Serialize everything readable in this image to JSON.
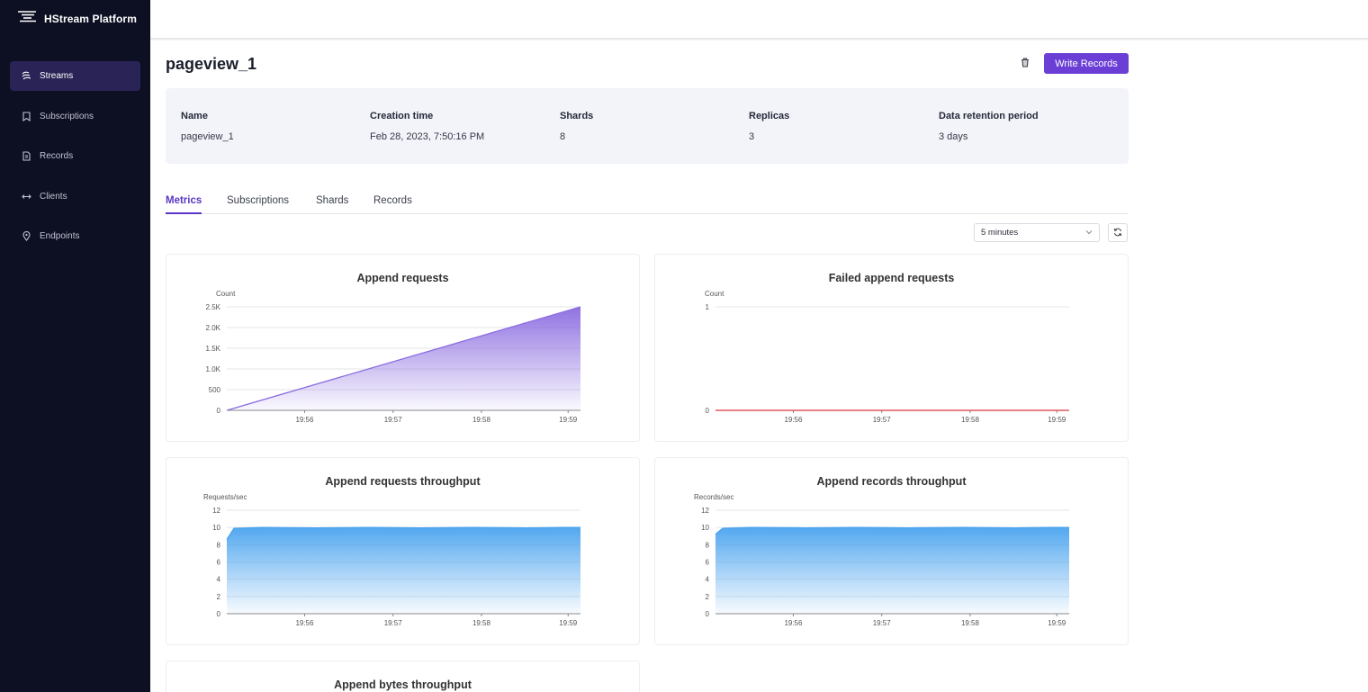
{
  "app": {
    "title": "HStream Platform"
  },
  "sidebar": {
    "items": [
      {
        "label": "Streams",
        "icon": "streams-icon",
        "active": true
      },
      {
        "label": "Subscriptions",
        "icon": "bookmark-icon",
        "active": false
      },
      {
        "label": "Records",
        "icon": "records-icon",
        "active": false
      },
      {
        "label": "Clients",
        "icon": "clients-icon",
        "active": false
      },
      {
        "label": "Endpoints",
        "icon": "location-pin-icon",
        "active": false
      }
    ]
  },
  "page": {
    "title": "pageview_1",
    "write_button": "Write Records"
  },
  "info": {
    "name_label": "Name",
    "name_value": "pageview_1",
    "creation_label": "Creation time",
    "creation_value": "Feb 28, 2023, 7:50:16 PM",
    "shards_label": "Shards",
    "shards_value": "8",
    "replicas_label": "Replicas",
    "replicas_value": "3",
    "retention_label": "Data retention period",
    "retention_value": "3 days"
  },
  "tabs": [
    {
      "label": "Metrics",
      "active": true
    },
    {
      "label": "Subscriptions",
      "active": false
    },
    {
      "label": "Shards",
      "active": false
    },
    {
      "label": "Records",
      "active": false
    }
  ],
  "controls": {
    "time_range": "5 minutes"
  },
  "colors": {
    "accent": "#6b3fd6",
    "sidebar": "#0d0f22",
    "purple_series": "#8a6be0",
    "blue_series": "#4aa3ef",
    "red_series": "#d9363e"
  },
  "chart_data": [
    {
      "type": "area",
      "title": "Append requests",
      "ylabel": "Count",
      "ylim": [
        0,
        2500
      ],
      "yticks": [
        "0",
        "500",
        "1.0K",
        "1.5K",
        "2.0K",
        "2.5K"
      ],
      "xticks": [
        "19:56",
        "19:57",
        "19:58",
        "19:59"
      ],
      "color": "#8a6be0",
      "points": [
        [
          0,
          0
        ],
        [
          1,
          2500
        ]
      ]
    },
    {
      "type": "line",
      "title": "Failed append requests",
      "ylabel": "Count",
      "ylim": [
        0,
        1
      ],
      "yticks": [
        "0",
        "1"
      ],
      "xticks": [
        "19:56",
        "19:57",
        "19:58",
        "19:59"
      ],
      "color": "#d9363e",
      "points": [
        [
          0,
          0
        ],
        [
          1,
          0
        ]
      ]
    },
    {
      "type": "area",
      "title": "Append requests throughput",
      "ylabel": "Requests/sec",
      "ylim": [
        0,
        12
      ],
      "yticks": [
        "0",
        "2",
        "4",
        "6",
        "8",
        "10",
        "12"
      ],
      "xticks": [
        "19:56",
        "19:57",
        "19:58",
        "19:59"
      ],
      "color": "#4aa3ef",
      "points": [
        [
          0,
          8.6
        ],
        [
          0.02,
          9.9
        ],
        [
          0.1,
          10
        ],
        [
          0.25,
          9.95
        ],
        [
          0.4,
          10
        ],
        [
          0.55,
          9.95
        ],
        [
          0.7,
          10
        ],
        [
          0.85,
          9.95
        ],
        [
          0.95,
          10
        ],
        [
          1,
          10
        ]
      ]
    },
    {
      "type": "area",
      "title": "Append records throughput",
      "ylabel": "Records/sec",
      "ylim": [
        0,
        12
      ],
      "yticks": [
        "0",
        "2",
        "4",
        "6",
        "8",
        "10",
        "12"
      ],
      "xticks": [
        "19:56",
        "19:57",
        "19:58",
        "19:59"
      ],
      "color": "#4aa3ef",
      "points": [
        [
          0,
          9.2
        ],
        [
          0.02,
          9.9
        ],
        [
          0.1,
          10
        ],
        [
          0.25,
          9.95
        ],
        [
          0.4,
          10
        ],
        [
          0.55,
          9.95
        ],
        [
          0.7,
          10
        ],
        [
          0.85,
          9.95
        ],
        [
          0.95,
          10
        ],
        [
          1,
          10
        ]
      ]
    },
    {
      "type": "area",
      "title": "Append bytes throughput"
    }
  ]
}
